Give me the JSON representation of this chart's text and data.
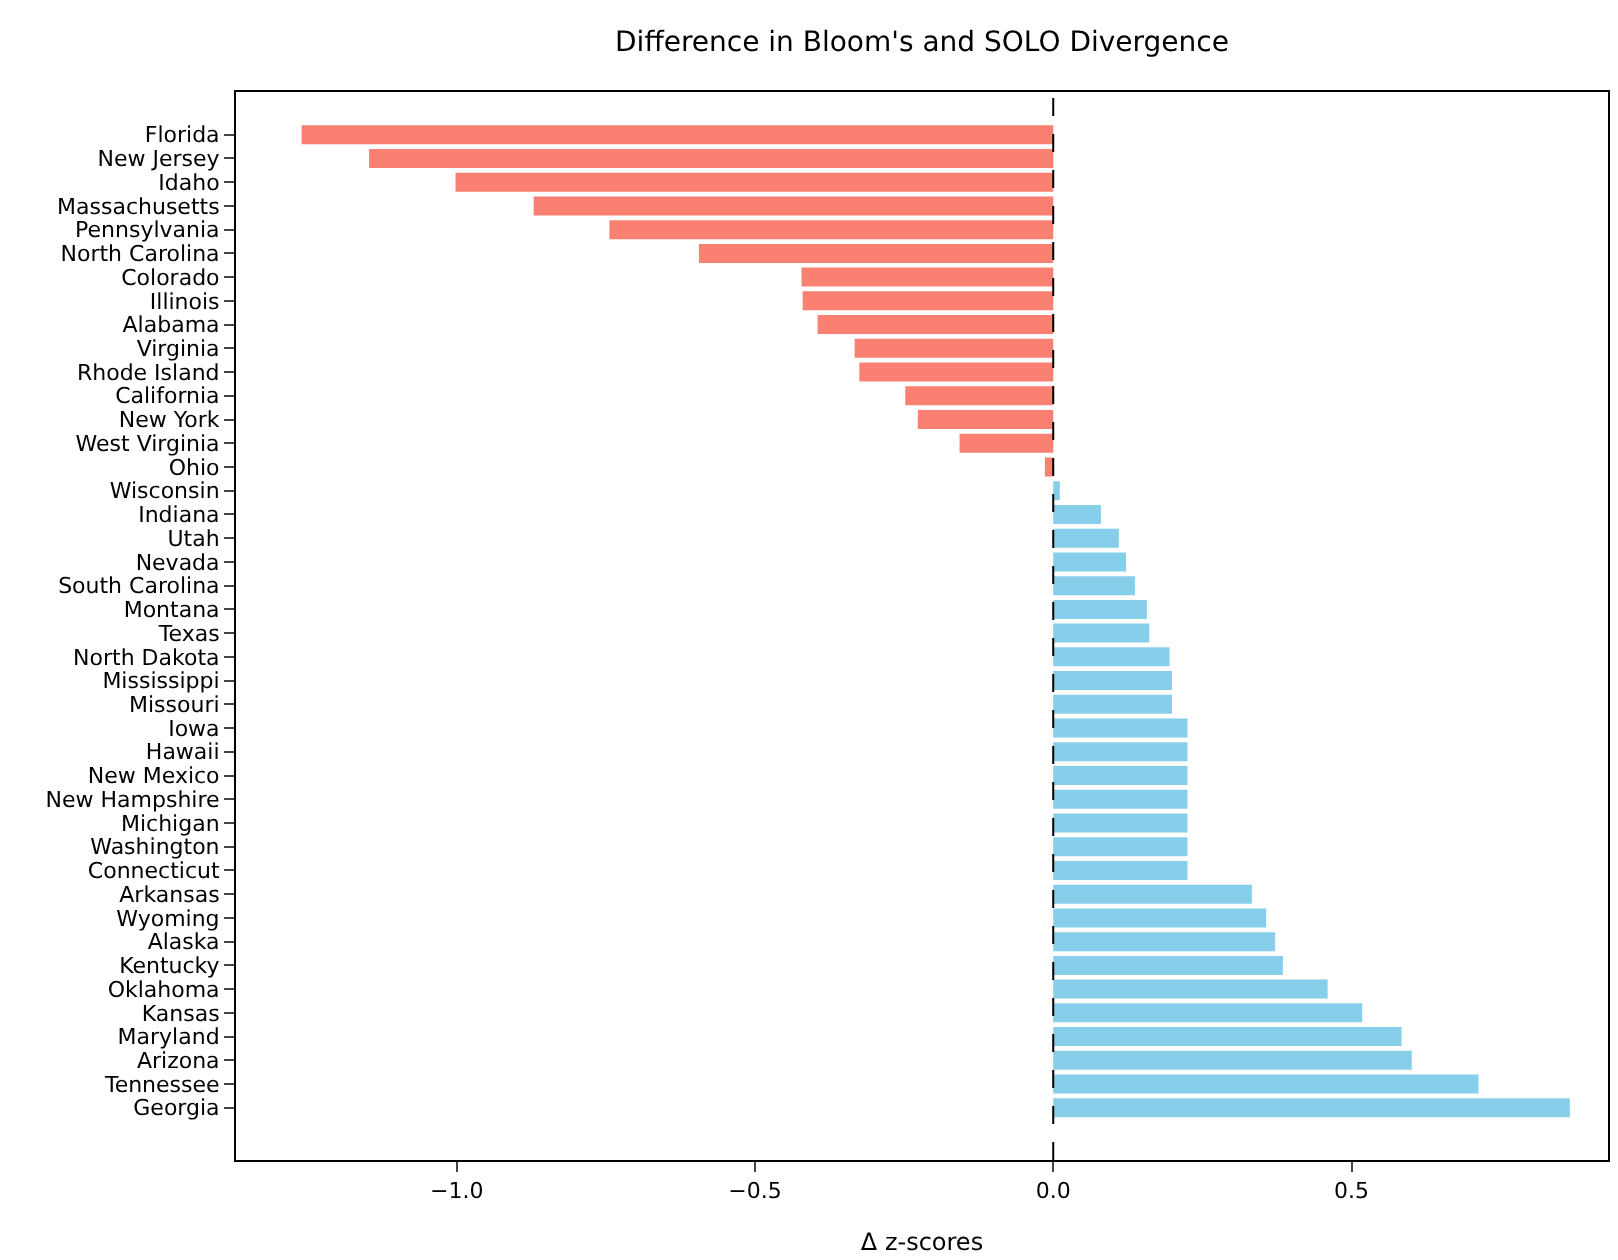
{
  "chart_data": {
    "type": "bar",
    "orientation": "horizontal",
    "title": "Difference in Bloom's and SOLO Divergence",
    "xlabel": "Δ z-scores",
    "categories": [
      "Florida",
      "New Jersey",
      "Idaho",
      "Massachusetts",
      "Pennsylvania",
      "North Carolina",
      "Colorado",
      "Illinois",
      "Alabama",
      "Virginia",
      "Rhode Island",
      "California",
      "New York",
      "West Virginia",
      "Ohio",
      "Wisconsin",
      "Indiana",
      "Utah",
      "Nevada",
      "South Carolina",
      "Montana",
      "Texas",
      "North Dakota",
      "Mississippi",
      "Missouri",
      "Iowa",
      "Hawaii",
      "New Mexico",
      "New Hampshire",
      "Michigan",
      "Washington",
      "Connecticut",
      "Arkansas",
      "Wyoming",
      "Alaska",
      "Kentucky",
      "Oklahoma",
      "Kansas",
      "Maryland",
      "Arizona",
      "Tennessee",
      "Georgia"
    ],
    "values": [
      -1.26,
      -1.147,
      -1.002,
      -0.871,
      -0.744,
      -0.594,
      -0.422,
      -0.42,
      -0.395,
      -0.333,
      -0.325,
      -0.248,
      -0.227,
      -0.157,
      -0.014,
      0.011,
      0.08,
      0.11,
      0.122,
      0.137,
      0.157,
      0.161,
      0.195,
      0.199,
      0.199,
      0.225,
      0.225,
      0.225,
      0.225,
      0.225,
      0.225,
      0.225,
      0.333,
      0.357,
      0.372,
      0.385,
      0.46,
      0.518,
      0.584,
      0.601,
      0.713,
      0.866
    ],
    "colors": [
      "#fa8072",
      "#fa8072",
      "#fa8072",
      "#fa8072",
      "#fa8072",
      "#fa8072",
      "#fa8072",
      "#fa8072",
      "#fa8072",
      "#fa8072",
      "#fa8072",
      "#fa8072",
      "#fa8072",
      "#fa8072",
      "#fa8072",
      "#87ceeb",
      "#87ceeb",
      "#87ceeb",
      "#87ceeb",
      "#87ceeb",
      "#87ceeb",
      "#87ceeb",
      "#87ceeb",
      "#87ceeb",
      "#87ceeb",
      "#87ceeb",
      "#87ceeb",
      "#87ceeb",
      "#87ceeb",
      "#87ceeb",
      "#87ceeb",
      "#87ceeb",
      "#87ceeb",
      "#87ceeb",
      "#87ceeb",
      "#87ceeb",
      "#87ceeb",
      "#87ceeb",
      "#87ceeb",
      "#87ceeb",
      "#87ceeb",
      "#87ceeb"
    ],
    "xlim": [
      -1.37,
      0.93
    ],
    "xticks": [
      {
        "value": -1.0,
        "label": "−1.0"
      },
      {
        "value": -0.5,
        "label": "−0.5"
      },
      {
        "value": 0.0,
        "label": "0.0"
      },
      {
        "value": 0.5,
        "label": "0.5"
      }
    ],
    "ref_lines": [
      {
        "axis": "x",
        "value": 0,
        "color": "#000000",
        "line_style": "dashed"
      }
    ]
  }
}
